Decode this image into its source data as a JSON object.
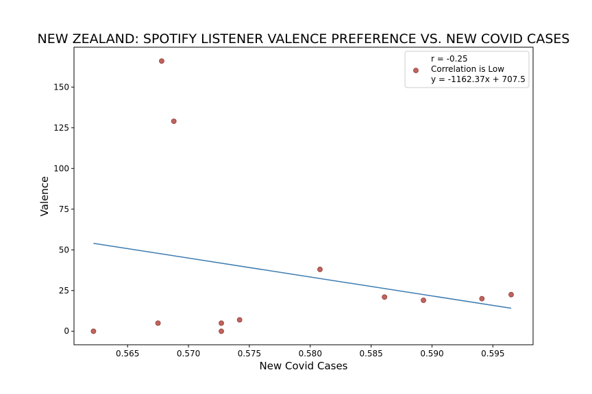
{
  "chart_data": {
    "type": "scatter",
    "title": "NEW ZEALAND: SPOTIFY LISTENER VALENCE PREFERENCE VS. NEW COVID CASES",
    "xlabel": "New Covid Cases",
    "ylabel": "Valence",
    "xlim": [
      0.5606,
      0.5983
    ],
    "ylim": [
      -8.3,
      174.5
    ],
    "x_ticks": [
      0.565,
      0.57,
      0.575,
      0.58,
      0.585,
      0.59,
      0.595
    ],
    "x_tick_labels": [
      "0.565",
      "0.570",
      "0.575",
      "0.580",
      "0.585",
      "0.590",
      "0.595"
    ],
    "y_ticks": [
      0,
      25,
      50,
      75,
      100,
      125,
      150
    ],
    "y_tick_labels": [
      "0",
      "25",
      "50",
      "75",
      "100",
      "125",
      "150"
    ],
    "grid": false,
    "legend_position": "top-right",
    "legend_lines": [
      "r = -0.25",
      "Correlation is Low",
      "y = -1162.37x + 707.5"
    ],
    "points": [
      {
        "x": 0.5622,
        "y": 0
      },
      {
        "x": 0.5675,
        "y": 5
      },
      {
        "x": 0.5678,
        "y": 166
      },
      {
        "x": 0.5688,
        "y": 129
      },
      {
        "x": 0.5727,
        "y": 5
      },
      {
        "x": 0.5727,
        "y": 0
      },
      {
        "x": 0.5742,
        "y": 7
      },
      {
        "x": 0.5808,
        "y": 38
      },
      {
        "x": 0.5861,
        "y": 21
      },
      {
        "x": 0.5893,
        "y": 19
      },
      {
        "x": 0.5941,
        "y": 20
      },
      {
        "x": 0.5965,
        "y": 22.5
      }
    ],
    "regression": {
      "slope": -1162.37,
      "intercept": 707.5,
      "x_start": 0.5622,
      "x_end": 0.5965
    },
    "colors": {
      "point_fill": "#c0645e",
      "point_edge": "#8b3a36",
      "line": "#3b7bb0",
      "axes": "#000000"
    }
  }
}
